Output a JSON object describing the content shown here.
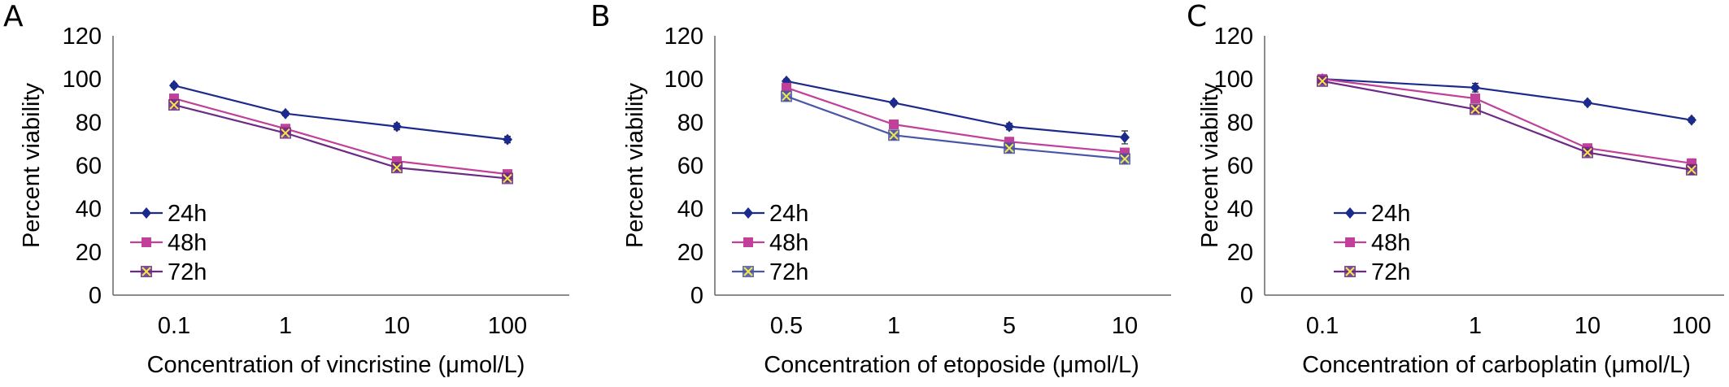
{
  "chart_data": [
    {
      "type": "line",
      "panel_label": "A",
      "categories": [
        "0.1",
        "1",
        "10",
        "100"
      ],
      "xlabel": "Concentration of vincristine (μmol/L)",
      "ylabel": "Percent viability",
      "ylim": [
        0,
        120
      ],
      "yticks": [
        "0",
        "20",
        "40",
        "60",
        "80",
        "100",
        "120"
      ],
      "grid": false,
      "legend_position": "bottom-left",
      "series": [
        {
          "name": "24h",
          "values": [
            97,
            84,
            78,
            72
          ],
          "errors": [
            1,
            1,
            1.5,
            1.5
          ],
          "color": "#1b2a8c",
          "marker": "diamond"
        },
        {
          "name": "48h",
          "values": [
            91,
            77,
            62,
            56
          ],
          "errors": [
            1,
            1,
            1.5,
            1.5
          ],
          "color": "#c0409a",
          "marker": "square"
        },
        {
          "name": "72h",
          "values": [
            88,
            75,
            59,
            54
          ],
          "errors": [
            1,
            1,
            1.5,
            1.5
          ],
          "color": "#6a2a86",
          "marker": "x-square"
        }
      ]
    },
    {
      "type": "line",
      "panel_label": "B",
      "categories": [
        "0.5",
        "1",
        "5",
        "10"
      ],
      "xlabel": "Concentration of etoposide (μmol/L)",
      "ylabel": "Percent viability",
      "ylim": [
        0,
        120
      ],
      "yticks": [
        "0",
        "20",
        "40",
        "60",
        "80",
        "100",
        "120"
      ],
      "grid": false,
      "legend_position": "bottom-left",
      "series": [
        {
          "name": "24h",
          "values": [
            99,
            89,
            78,
            73
          ],
          "errors": [
            1,
            1,
            1.5,
            3
          ],
          "color": "#1b2a8c",
          "marker": "diamond"
        },
        {
          "name": "48h",
          "values": [
            96,
            79,
            71,
            66
          ],
          "errors": [
            1,
            1.5,
            1.5,
            1.5
          ],
          "color": "#c0409a",
          "marker": "square"
        },
        {
          "name": "72h",
          "values": [
            92,
            74,
            68,
            63
          ],
          "errors": [
            2,
            2,
            2,
            2
          ],
          "color": "#4a56a6",
          "marker": "x-square"
        }
      ]
    },
    {
      "type": "line",
      "panel_label": "C",
      "categories": [
        "0.1",
        "1",
        "10",
        "100"
      ],
      "xlabel": "Concentration of carboplatin (μmol/L)",
      "ylabel": "Percent viability",
      "ylim": [
        0,
        120
      ],
      "yticks": [
        "0",
        "20",
        "40",
        "60",
        "80",
        "100",
        "120"
      ],
      "grid": false,
      "legend_position": "bottom-left",
      "series": [
        {
          "name": "24h",
          "values": [
            100,
            96,
            89,
            81
          ],
          "errors": [
            1,
            2,
            1,
            1
          ],
          "color": "#1b2a8c",
          "marker": "diamond"
        },
        {
          "name": "48h",
          "values": [
            100,
            91,
            68,
            61
          ],
          "errors": [
            1,
            1.5,
            1.5,
            2
          ],
          "color": "#c0409a",
          "marker": "square"
        },
        {
          "name": "72h",
          "values": [
            99,
            86,
            66,
            58
          ],
          "errors": [
            1,
            1.5,
            1.5,
            2
          ],
          "color": "#6a2a86",
          "marker": "x-square"
        }
      ]
    }
  ]
}
